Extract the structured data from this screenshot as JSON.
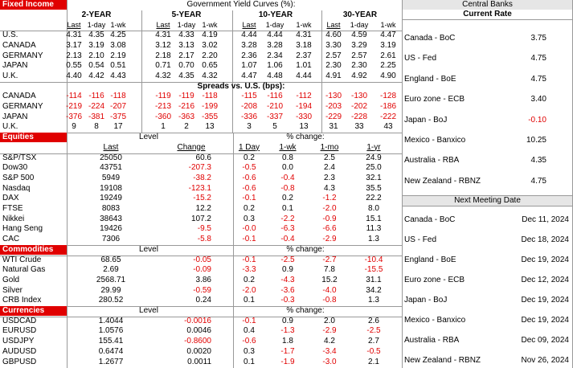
{
  "fixed_income": {
    "title": "Fixed Income",
    "heading": "Government Yield Curves (%):",
    "tenors": [
      "2-YEAR",
      "5-YEAR",
      "10-YEAR",
      "30-YEAR"
    ],
    "columns": [
      "Last",
      "1-day",
      "1-wk"
    ],
    "yields": [
      {
        "country": "U.S.",
        "values": [
          "4.31",
          "4.35",
          "4.25",
          "4.31",
          "4.33",
          "4.19",
          "4.44",
          "4.44",
          "4.31",
          "4.60",
          "4.59",
          "4.47"
        ]
      },
      {
        "country": "CANADA",
        "values": [
          "3.17",
          "3.19",
          "3.08",
          "3.12",
          "3.13",
          "3.02",
          "3.28",
          "3.28",
          "3.18",
          "3.30",
          "3.29",
          "3.19"
        ]
      },
      {
        "country": "GERMANY",
        "values": [
          "2.13",
          "2.10",
          "2.19",
          "2.18",
          "2.17",
          "2.20",
          "2.36",
          "2.34",
          "2.37",
          "2.57",
          "2.57",
          "2.61"
        ]
      },
      {
        "country": "JAPAN",
        "values": [
          "0.55",
          "0.54",
          "0.51",
          "0.71",
          "0.70",
          "0.65",
          "1.07",
          "1.06",
          "1.01",
          "2.30",
          "2.30",
          "2.25"
        ]
      },
      {
        "country": "U.K.",
        "values": [
          "4.40",
          "4.42",
          "4.43",
          "4.32",
          "4.35",
          "4.32",
          "4.47",
          "4.48",
          "4.44",
          "4.91",
          "4.92",
          "4.90"
        ]
      }
    ],
    "spreads_heading": "Spreads vs. U.S. (bps):",
    "spreads": [
      {
        "country": "CANADA",
        "values": [
          "-114",
          "-116",
          "-118",
          "-119",
          "-119",
          "-118",
          "-115",
          "-116",
          "-112",
          "-130",
          "-130",
          "-128"
        ]
      },
      {
        "country": "GERMANY",
        "values": [
          "-219",
          "-224",
          "-207",
          "-213",
          "-216",
          "-199",
          "-208",
          "-210",
          "-194",
          "-203",
          "-202",
          "-186"
        ]
      },
      {
        "country": "JAPAN",
        "values": [
          "-376",
          "-381",
          "-375",
          "-360",
          "-363",
          "-355",
          "-336",
          "-337",
          "-330",
          "-229",
          "-228",
          "-222"
        ]
      },
      {
        "country": "U.K.",
        "values": [
          "9",
          "8",
          "17",
          "1",
          "2",
          "13",
          "3",
          "5",
          "13",
          "31",
          "33",
          "43"
        ]
      }
    ]
  },
  "equities": {
    "title": "Equities",
    "level_heading": "Level",
    "change_heading": "% change:",
    "columns": [
      "Last",
      "Change",
      "1 Day",
      "1-wk",
      "1-mo",
      "1-yr"
    ],
    "rows": [
      {
        "name": "S&P/TSX",
        "values": [
          "25050",
          "60.6",
          "0.2",
          "0.8",
          "2.5",
          "24.9"
        ]
      },
      {
        "name": "Dow30",
        "values": [
          "43751",
          "-207.3",
          "-0.5",
          "0.0",
          "2.4",
          "25.0"
        ]
      },
      {
        "name": "S&P 500",
        "values": [
          "5949",
          "-38.2",
          "-0.6",
          "-0.4",
          "2.3",
          "32.1"
        ]
      },
      {
        "name": "Nasdaq",
        "values": [
          "19108",
          "-123.1",
          "-0.6",
          "-0.8",
          "4.3",
          "35.5"
        ]
      },
      {
        "name": "DAX",
        "values": [
          "19249",
          "-15.2",
          "-0.1",
          "0.2",
          "-1.2",
          "22.2"
        ]
      },
      {
        "name": "FTSE",
        "values": [
          "8083",
          "12.2",
          "0.2",
          "0.1",
          "-2.0",
          "8.0"
        ]
      },
      {
        "name": "Nikkei",
        "values": [
          "38643",
          "107.2",
          "0.3",
          "-2.2",
          "-0.9",
          "15.1"
        ]
      },
      {
        "name": "Hang Seng",
        "values": [
          "19426",
          "-9.5",
          "-0.0",
          "-6.3",
          "-6.6",
          "11.3"
        ]
      },
      {
        "name": "CAC",
        "values": [
          "7306",
          "-5.8",
          "-0.1",
          "-0.4",
          "-2.9",
          "1.3"
        ]
      }
    ]
  },
  "commodities": {
    "title": "Commodities",
    "level_heading": "Level",
    "change_heading": "% change:",
    "rows": [
      {
        "name": "WTI Crude",
        "values": [
          "68.65",
          "-0.05",
          "-0.1",
          "-2.5",
          "-2.7",
          "-10.4"
        ]
      },
      {
        "name": "Natural Gas",
        "values": [
          "2.69",
          "-0.09",
          "-3.3",
          "0.9",
          "7.8",
          "-15.5"
        ]
      },
      {
        "name": "Gold",
        "values": [
          "2568.71",
          "3.86",
          "0.2",
          "-4.3",
          "15.2",
          "31.1"
        ]
      },
      {
        "name": "Silver",
        "values": [
          "29.99",
          "-0.59",
          "-2.0",
          "-3.6",
          "-4.0",
          "34.2"
        ]
      },
      {
        "name": "CRB Index",
        "values": [
          "280.52",
          "0.24",
          "0.1",
          "-0.3",
          "-0.8",
          "1.3"
        ]
      }
    ]
  },
  "currencies": {
    "title": "Currencies",
    "level_heading": "Level",
    "change_heading": "% change:",
    "rows": [
      {
        "name": "USDCAD",
        "values": [
          "1.4044",
          "-0.0016",
          "-0.1",
          "0.9",
          "2.0",
          "2.6"
        ]
      },
      {
        "name": "EURUSD",
        "values": [
          "1.0576",
          "0.0046",
          "0.4",
          "-1.3",
          "-2.9",
          "-2.5"
        ]
      },
      {
        "name": "USDJPY",
        "values": [
          "155.41",
          "-0.8600",
          "-0.6",
          "1.8",
          "4.2",
          "2.7"
        ]
      },
      {
        "name": "AUDUSD",
        "values": [
          "0.6474",
          "0.0020",
          "0.3",
          "-1.7",
          "-3.4",
          "-0.5"
        ]
      },
      {
        "name": "GBPUSD",
        "values": [
          "1.2677",
          "0.0011",
          "0.1",
          "-1.9",
          "-3.0",
          "2.1"
        ]
      }
    ]
  },
  "central_banks": {
    "title": "Central Banks",
    "current_rate_heading": "Current Rate",
    "rates": [
      {
        "bank": "Canada - BoC",
        "rate": "3.75"
      },
      {
        "bank": "US - Fed",
        "rate": "4.75"
      },
      {
        "bank": "England - BoE",
        "rate": "4.75"
      },
      {
        "bank": "Euro zone - ECB",
        "rate": "3.40"
      },
      {
        "bank": "Japan - BoJ",
        "rate": "-0.10"
      },
      {
        "bank": "Mexico - Banxico",
        "rate": "10.25"
      },
      {
        "bank": "Australia - RBA",
        "rate": "4.35"
      },
      {
        "bank": "New Zealand - RBNZ",
        "rate": "4.75"
      }
    ],
    "next_meeting_heading": "Next Meeting Date",
    "meetings": [
      {
        "bank": "Canada - BoC",
        "date": "Dec 11, 2024"
      },
      {
        "bank": "US - Fed",
        "date": "Dec 18, 2024"
      },
      {
        "bank": "England - BoE",
        "date": "Dec 19, 2024"
      },
      {
        "bank": "Euro zone - ECB",
        "date": "Dec 12, 2024"
      },
      {
        "bank": "Japan - BoJ",
        "date": "Dec 19, 2024"
      },
      {
        "bank": "Mexico - Banxico",
        "date": "Dec 19, 2024"
      },
      {
        "bank": "Australia - RBA",
        "date": "Dec 09, 2024"
      },
      {
        "bank": "New Zealand - RBNZ",
        "date": "Nov 26, 2024"
      }
    ]
  }
}
